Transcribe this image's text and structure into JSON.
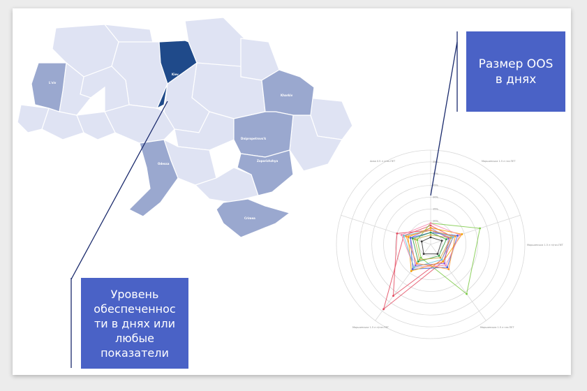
{
  "callouts": {
    "oos": "Размер OOS\nв днях",
    "level": "Уровень\nобеспеченнос\nти в днях или\nлюбые\nпоказатели"
  },
  "map": {
    "regions": [
      {
        "id": "lviv",
        "label": "L'viv",
        "tone": "mid"
      },
      {
        "id": "kiev",
        "label": "Kiev",
        "tone": "dark"
      },
      {
        "id": "kharkiv",
        "label": "Kharkiv",
        "tone": "mid"
      },
      {
        "id": "dnipro",
        "label": "Dnipropetrovs'k",
        "tone": "mid"
      },
      {
        "id": "odessa",
        "label": "Odessa",
        "tone": "mid"
      },
      {
        "id": "zaporizhzhia",
        "label": "Zaporizhzhya",
        "tone": "mid"
      },
      {
        "id": "crimea",
        "label": "Crimea",
        "tone": "mid"
      }
    ],
    "colors": {
      "light": "#dfe3f3",
      "mid": "#9aa8cf",
      "dark": "#1f4a8a",
      "border": "#ffffff"
    }
  },
  "chart_data": {
    "type": "radar",
    "axes": [
      "Аква 0.5 л стек.ПЕТ",
      "Моршинська 1.5 л газ.ПЕТ",
      "Моршинська 1.5 л н/газ.ПЕТ",
      "Моршинська 1.5 л газ.ПЕТ",
      "Моршинська 1.5 л н/газ.ПЕТ"
    ],
    "rings": 8,
    "max": 40,
    "tick_labels": [
      "5%",
      "10%",
      "15%",
      "20%",
      "25%",
      "30%",
      "35%"
    ],
    "series": [
      {
        "color": "#e3485e",
        "values": [
          8,
          10,
          9,
          34,
          12
        ]
      },
      {
        "color": "#e3485e",
        "values": [
          6,
          9,
          8,
          27,
          15
        ]
      },
      {
        "color": "#7ac943",
        "values": [
          9,
          22,
          26,
          7,
          6
        ]
      },
      {
        "color": "#9b59d0",
        "values": [
          7,
          8,
          10,
          11,
          9
        ]
      },
      {
        "color": "#3b5bdb",
        "values": [
          5,
          12,
          12,
          13,
          9
        ]
      },
      {
        "color": "#f59f00",
        "values": [
          7,
          14,
          9,
          14,
          10
        ]
      },
      {
        "color": "#f783ac",
        "values": [
          9,
          13,
          11,
          12,
          13
        ]
      },
      {
        "color": "#63c5da",
        "values": [
          6,
          10,
          8,
          12,
          12
        ]
      },
      {
        "color": "#2f9e44",
        "values": [
          5,
          7,
          6,
          9,
          8
        ]
      },
      {
        "color": "#c2a83e",
        "values": [
          4,
          9,
          7,
          8,
          7
        ]
      },
      {
        "color": "#333333",
        "values": [
          3,
          5,
          5,
          5,
          4
        ]
      },
      {
        "color": "#ff922b",
        "values": [
          6,
          11,
          13,
          10,
          11
        ]
      }
    ]
  }
}
